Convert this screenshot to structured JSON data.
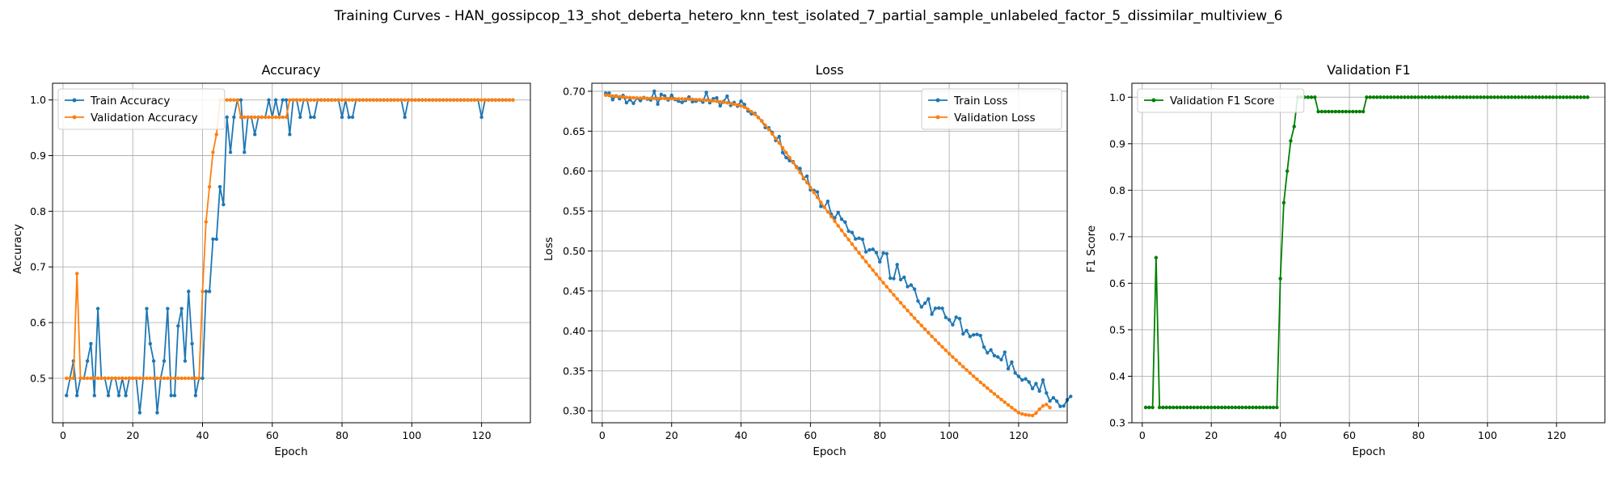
{
  "figure": {
    "suptitle": "Training Curves - HAN_gossipcop_13_shot_deberta_hetero_knn_test_isolated_7_partial_sample_unlabeled_factor_5_dissimilar_multiview_6"
  },
  "colors": {
    "blue": "#1f77b4",
    "orange": "#ff7f0e",
    "green": "#008000",
    "grid": "#b0b0b0"
  },
  "chart_data": [
    {
      "type": "line",
      "title": "Accuracy",
      "xlabel": "Epoch",
      "ylabel": "Accuracy",
      "xlim": [
        -3,
        134
      ],
      "ylim": [
        0.42,
        1.03
      ],
      "xticks": [
        0,
        20,
        40,
        60,
        80,
        100,
        120
      ],
      "yticks": [
        0.5,
        0.6,
        0.7,
        0.8,
        0.9,
        1.0
      ],
      "ytick_labels": [
        "0.5",
        "0.6",
        "0.7",
        "0.8",
        "0.9",
        "1.0"
      ],
      "grid": true,
      "legend_position": "upper-left",
      "series": [
        {
          "name": "Train Accuracy",
          "color": "#1f77b4",
          "values": [
            0.469,
            0.5,
            0.531,
            0.469,
            0.5,
            0.5,
            0.531,
            0.562,
            0.469,
            0.625,
            0.5,
            0.5,
            0.469,
            0.5,
            0.5,
            0.469,
            0.5,
            0.469,
            0.5,
            0.5,
            0.5,
            0.438,
            0.5,
            0.625,
            0.562,
            0.531,
            0.438,
            0.5,
            0.531,
            0.625,
            0.469,
            0.469,
            0.594,
            0.625,
            0.531,
            0.656,
            0.562,
            0.469,
            0.5,
            0.5,
            0.656,
            0.656,
            0.75,
            0.75,
            0.844,
            0.812,
            0.969,
            0.906,
            0.969,
            1.0,
            1.0,
            0.906,
            0.969,
            0.969,
            0.938,
            0.969,
            0.969,
            0.969,
            1.0,
            0.969,
            1.0,
            0.969,
            1.0,
            1.0,
            0.938,
            1.0,
            1.0,
            0.969,
            1.0,
            1.0,
            0.969,
            0.969,
            1.0,
            1.0,
            1.0,
            1.0,
            1.0,
            1.0,
            1.0,
            0.969,
            1.0,
            0.969,
            0.969,
            1.0,
            1.0,
            1.0,
            1.0,
            1.0,
            1.0,
            1.0,
            1.0,
            1.0,
            1.0,
            1.0,
            1.0,
            1.0,
            1.0,
            0.969,
            1.0,
            1.0,
            1.0,
            1.0,
            1.0,
            1.0,
            1.0,
            1.0,
            1.0,
            1.0,
            1.0,
            1.0,
            1.0,
            1.0,
            1.0,
            1.0,
            1.0,
            1.0,
            1.0,
            1.0,
            1.0,
            0.969,
            1.0,
            1.0,
            1.0,
            1.0,
            1.0,
            1.0,
            1.0,
            1.0,
            1.0
          ]
        },
        {
          "name": "Validation Accuracy",
          "color": "#ff7f0e",
          "values": [
            0.5,
            0.5,
            0.5,
            0.688,
            0.5,
            0.5,
            0.5,
            0.5,
            0.5,
            0.5,
            0.5,
            0.5,
            0.5,
            0.5,
            0.5,
            0.5,
            0.5,
            0.5,
            0.5,
            0.5,
            0.5,
            0.5,
            0.5,
            0.5,
            0.5,
            0.5,
            0.5,
            0.5,
            0.5,
            0.5,
            0.5,
            0.5,
            0.5,
            0.5,
            0.5,
            0.5,
            0.5,
            0.5,
            0.5,
            0.656,
            0.781,
            0.844,
            0.906,
            0.938,
            1.0,
            1.0,
            1.0,
            1.0,
            1.0,
            1.0,
            0.969,
            0.969,
            0.969,
            0.969,
            0.969,
            0.969,
            0.969,
            0.969,
            0.969,
            0.969,
            0.969,
            0.969,
            0.969,
            0.969,
            1.0,
            1.0,
            1.0,
            1.0,
            1.0,
            1.0,
            1.0,
            1.0,
            1.0,
            1.0,
            1.0,
            1.0,
            1.0,
            1.0,
            1.0,
            1.0,
            1.0,
            1.0,
            1.0,
            1.0,
            1.0,
            1.0,
            1.0,
            1.0,
            1.0,
            1.0,
            1.0,
            1.0,
            1.0,
            1.0,
            1.0,
            1.0,
            1.0,
            1.0,
            1.0,
            1.0,
            1.0,
            1.0,
            1.0,
            1.0,
            1.0,
            1.0,
            1.0,
            1.0,
            1.0,
            1.0,
            1.0,
            1.0,
            1.0,
            1.0,
            1.0,
            1.0,
            1.0,
            1.0,
            1.0,
            1.0,
            1.0,
            1.0,
            1.0,
            1.0,
            1.0,
            1.0,
            1.0,
            1.0,
            1.0
          ]
        }
      ]
    },
    {
      "type": "line",
      "title": "Loss",
      "xlabel": "Epoch",
      "ylabel": "Loss",
      "xlim": [
        -3,
        134
      ],
      "ylim": [
        0.285,
        0.71
      ],
      "xticks": [
        0,
        20,
        40,
        60,
        80,
        100,
        120
      ],
      "yticks": [
        0.3,
        0.35,
        0.4,
        0.45,
        0.5,
        0.55,
        0.6,
        0.65,
        0.7
      ],
      "ytick_labels": [
        "0.30",
        "0.35",
        "0.40",
        "0.45",
        "0.50",
        "0.55",
        "0.60",
        "0.65",
        "0.70"
      ],
      "grid": true,
      "legend_position": "upper-right",
      "series": [
        {
          "name": "Train Loss",
          "color": "#1f77b4",
          "values": [
            0.6975,
            0.6975,
            0.6895,
            0.6941,
            0.6907,
            0.6947,
            0.6856,
            0.6894,
            0.6849,
            0.6912,
            0.6883,
            0.6921,
            0.6902,
            0.6891,
            0.7001,
            0.6839,
            0.696,
            0.6942,
            0.6891,
            0.695,
            0.6896,
            0.6876,
            0.686,
            0.6884,
            0.6928,
            0.6869,
            0.6876,
            0.6891,
            0.6864,
            0.6985,
            0.6856,
            0.6906,
            0.6917,
            0.6818,
            0.6873,
            0.6938,
            0.6823,
            0.6859,
            0.6814,
            0.6876,
            0.6834,
            0.6753,
            0.6717,
            0.6722,
            0.6671,
            0.6629,
            0.6545,
            0.6542,
            0.6482,
            0.6383,
            0.6433,
            0.6232,
            0.617,
            0.6131,
            0.6118,
            0.6053,
            0.6033,
            0.5907,
            0.5937,
            0.5766,
            0.5759,
            0.574,
            0.5559,
            0.5549,
            0.5622,
            0.5461,
            0.5414,
            0.5484,
            0.5398,
            0.5362,
            0.5249,
            0.5232,
            0.515,
            0.516,
            0.5146,
            0.4989,
            0.5013,
            0.5022,
            0.498,
            0.4864,
            0.4974,
            0.4967,
            0.466,
            0.4655,
            0.483,
            0.4642,
            0.4672,
            0.4554,
            0.4574,
            0.4523,
            0.4373,
            0.43,
            0.4347,
            0.44,
            0.4209,
            0.4283,
            0.4286,
            0.4282,
            0.4168,
            0.4139,
            0.4076,
            0.4171,
            0.4153,
            0.3963,
            0.4004,
            0.3929,
            0.395,
            0.3956,
            0.3942,
            0.3798,
            0.3726,
            0.3762,
            0.369,
            0.3674,
            0.364,
            0.3734,
            0.3527,
            0.3609,
            0.3473,
            0.343,
            0.3386,
            0.3399,
            0.336,
            0.3278,
            0.334,
            0.3247,
            0.3385,
            0.3223,
            0.3122,
            0.3163,
            0.312,
            0.3055,
            0.306,
            0.3137,
            0.318
          ]
        },
        {
          "name": "Validation Loss",
          "color": "#ff7f0e",
          "values": [
            0.695,
            0.6946,
            0.6941,
            0.6937,
            0.6932,
            0.6928,
            0.6924,
            0.6921,
            0.6918,
            0.6916,
            0.6914,
            0.6913,
            0.6912,
            0.6911,
            0.691,
            0.691,
            0.6909,
            0.6909,
            0.6908,
            0.6907,
            0.6906,
            0.6905,
            0.6904,
            0.6903,
            0.6901,
            0.6899,
            0.6896,
            0.6894,
            0.6891,
            0.6887,
            0.6883,
            0.6879,
            0.6874,
            0.6868,
            0.6862,
            0.6855,
            0.6847,
            0.6838,
            0.6828,
            0.6817,
            0.68,
            0.6775,
            0.6745,
            0.671,
            0.667,
            0.6625,
            0.6575,
            0.6522,
            0.6466,
            0.641,
            0.6352,
            0.6292,
            0.6231,
            0.6169,
            0.6107,
            0.6044,
            0.5982,
            0.5919,
            0.5857,
            0.5795,
            0.5733,
            0.5672,
            0.5611,
            0.5551,
            0.5491,
            0.5432,
            0.5373,
            0.5315,
            0.5257,
            0.52,
            0.5143,
            0.5087,
            0.5031,
            0.4976,
            0.4921,
            0.4867,
            0.4813,
            0.476,
            0.4707,
            0.4655,
            0.4603,
            0.4552,
            0.4501,
            0.4451,
            0.4401,
            0.4352,
            0.4303,
            0.4255,
            0.4207,
            0.416,
            0.4113,
            0.4067,
            0.4021,
            0.3976,
            0.3931,
            0.3887,
            0.3843,
            0.38,
            0.3757,
            0.3715,
            0.3673,
            0.3632,
            0.3591,
            0.3551,
            0.3511,
            0.3472,
            0.3433,
            0.3395,
            0.3357,
            0.332,
            0.3283,
            0.3247,
            0.3211,
            0.3176,
            0.3141,
            0.3107,
            0.3073,
            0.304,
            0.3007,
            0.2975,
            0.296,
            0.295,
            0.2945,
            0.294,
            0.297,
            0.302,
            0.306,
            0.308,
            0.304
          ]
        }
      ]
    },
    {
      "type": "line",
      "title": "Validation F1",
      "xlabel": "Epoch",
      "ylabel": "F1 Score",
      "xlim": [
        -3,
        134
      ],
      "ylim": [
        0.3,
        1.03
      ],
      "xticks": [
        0,
        20,
        40,
        60,
        80,
        100,
        120
      ],
      "yticks": [
        0.3,
        0.4,
        0.5,
        0.6,
        0.7,
        0.8,
        0.9,
        1.0
      ],
      "ytick_labels": [
        "0.3",
        "0.4",
        "0.5",
        "0.6",
        "0.7",
        "0.8",
        "0.9",
        "1.0"
      ],
      "grid": true,
      "legend_position": "upper-left",
      "series": [
        {
          "name": "Validation F1 Score",
          "color": "#008000",
          "values": [
            0.333,
            0.333,
            0.333,
            0.655,
            0.333,
            0.333,
            0.333,
            0.333,
            0.333,
            0.333,
            0.333,
            0.333,
            0.333,
            0.333,
            0.333,
            0.333,
            0.333,
            0.333,
            0.333,
            0.333,
            0.333,
            0.333,
            0.333,
            0.333,
            0.333,
            0.333,
            0.333,
            0.333,
            0.333,
            0.333,
            0.333,
            0.333,
            0.333,
            0.333,
            0.333,
            0.333,
            0.333,
            0.333,
            0.333,
            0.61,
            0.773,
            0.841,
            0.906,
            0.937,
            1.0,
            1.0,
            1.0,
            1.0,
            1.0,
            1.0,
            0.969,
            0.969,
            0.969,
            0.969,
            0.969,
            0.969,
            0.969,
            0.969,
            0.969,
            0.969,
            0.969,
            0.969,
            0.969,
            0.969,
            1.0,
            1.0,
            1.0,
            1.0,
            1.0,
            1.0,
            1.0,
            1.0,
            1.0,
            1.0,
            1.0,
            1.0,
            1.0,
            1.0,
            1.0,
            1.0,
            1.0,
            1.0,
            1.0,
            1.0,
            1.0,
            1.0,
            1.0,
            1.0,
            1.0,
            1.0,
            1.0,
            1.0,
            1.0,
            1.0,
            1.0,
            1.0,
            1.0,
            1.0,
            1.0,
            1.0,
            1.0,
            1.0,
            1.0,
            1.0,
            1.0,
            1.0,
            1.0,
            1.0,
            1.0,
            1.0,
            1.0,
            1.0,
            1.0,
            1.0,
            1.0,
            1.0,
            1.0,
            1.0,
            1.0,
            1.0,
            1.0,
            1.0,
            1.0,
            1.0,
            1.0,
            1.0,
            1.0,
            1.0,
            1.0
          ]
        }
      ]
    }
  ]
}
